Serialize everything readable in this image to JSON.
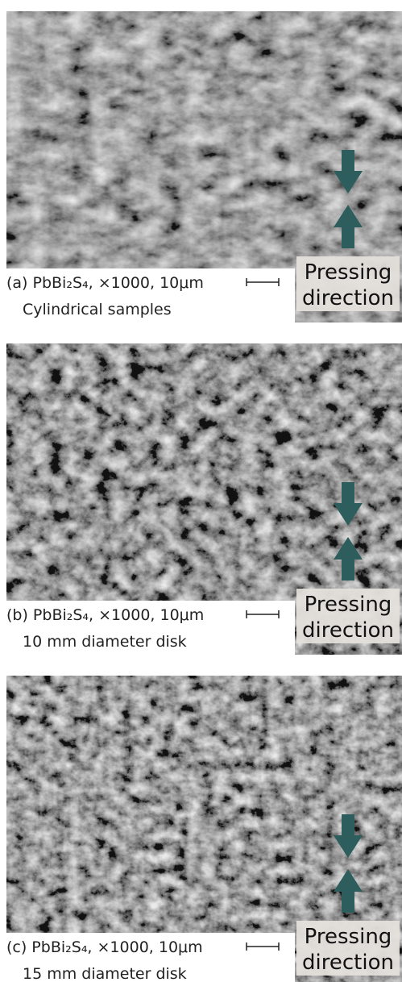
{
  "panels": [
    {
      "caption": "(a) PbBi₂S₄,  ×1000,  10μm",
      "subtitle": "Cylindrical samples",
      "pressing": [
        "Pressing",
        "direction"
      ]
    },
    {
      "caption": "(b) PbBi₂S₄,  ×1000,  10μm",
      "subtitle": "10 mm diameter disk",
      "pressing": [
        "Pressing",
        "direction"
      ]
    },
    {
      "caption": "(c) PbBi₂S₄,  ×1000,  10μm",
      "subtitle": "15 mm diameter disk",
      "pressing": [
        "Pressing",
        "direction"
      ]
    }
  ]
}
